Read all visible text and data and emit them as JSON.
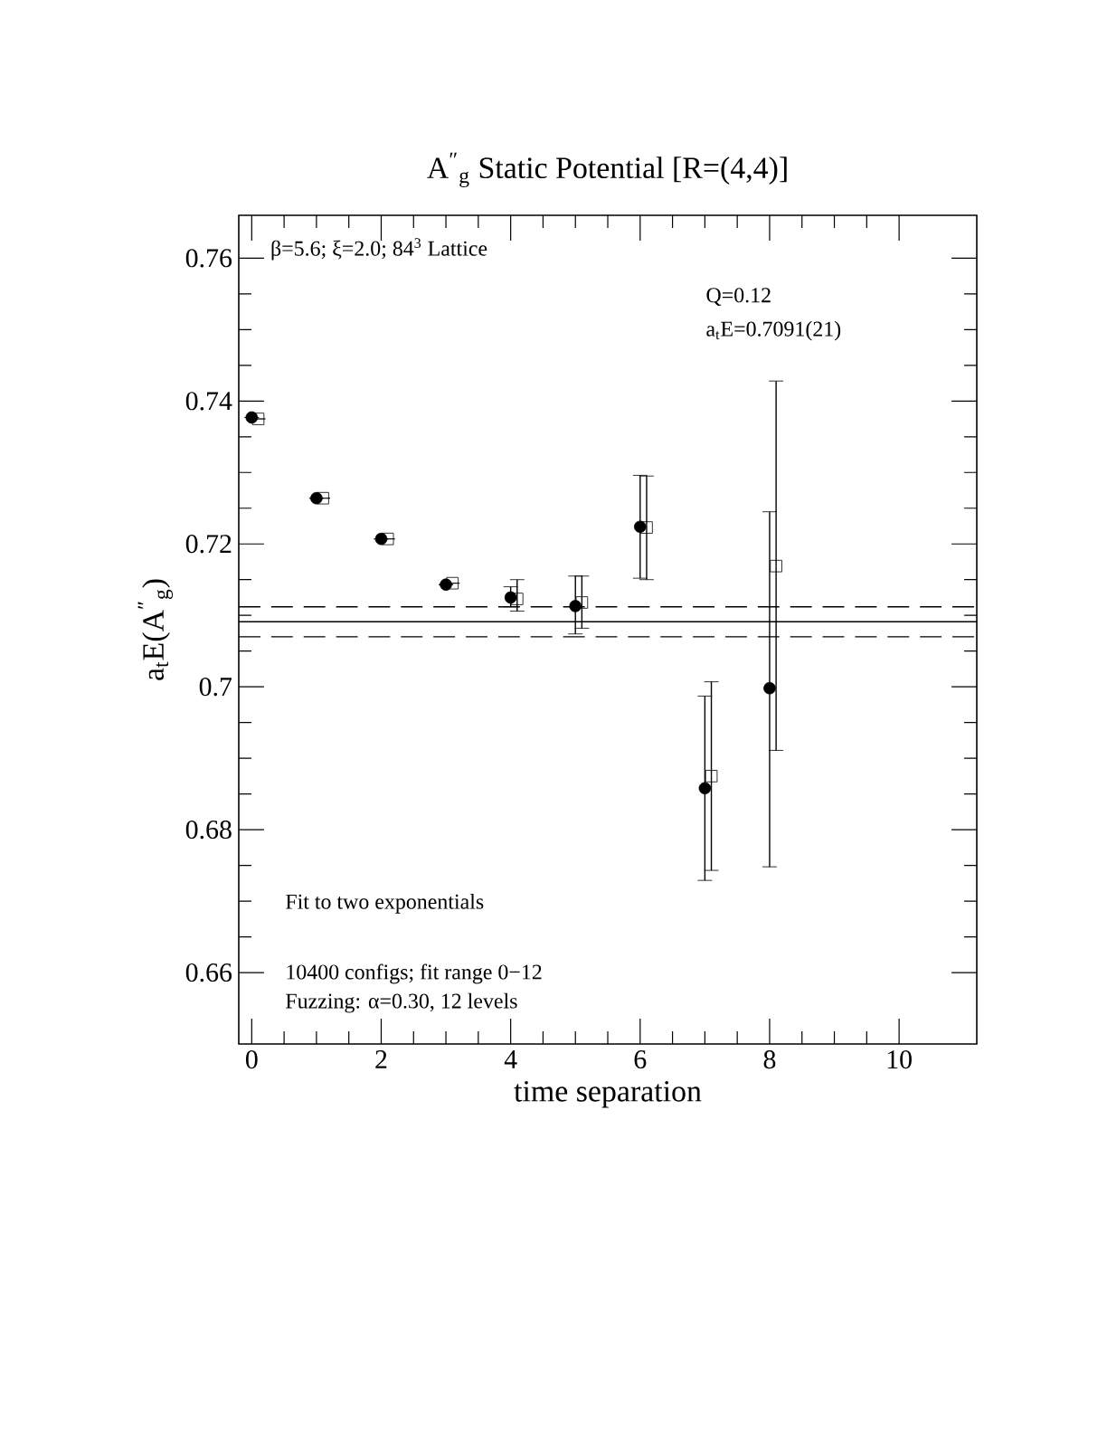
{
  "chart_data": {
    "type": "scatter",
    "title": "A$^{″}$$_{g}$  Static Potential [R=(4,4)]",
    "xlabel": "time separation",
    "ylabel": "a$_{t}$E(A$^{″}$$_{g}$)",
    "xlim": [
      -0.2,
      11.2
    ],
    "ylim": [
      0.65,
      0.766
    ],
    "xticks": [
      0,
      2,
      4,
      6,
      8,
      10
    ],
    "yticks": [
      0.66,
      0.68,
      0.7,
      0.72,
      0.74,
      0.76
    ],
    "series": [
      {
        "color": "#000000",
        "marker": "circle",
        "x": [
          0,
          1,
          2,
          3,
          4,
          5,
          6,
          7,
          8
        ],
        "values": [
          0.7377,
          0.7264,
          0.7207,
          0.7143,
          0.7125,
          0.7113,
          0.7224,
          0.6858,
          0.6998
        ],
        "errors": [
          null,
          null,
          null,
          null,
          [
            0.7112,
            0.714
          ],
          [
            0.7074,
            0.7155
          ],
          [
            0.7152,
            0.7296
          ],
          [
            0.6729,
            0.6987
          ],
          [
            0.6748,
            0.7245
          ]
        ]
      },
      {
        "color": "#000000",
        "marker": "square",
        "x": [
          0.1,
          1.1,
          2.1,
          3.1,
          4.1,
          5.1,
          6.1,
          7.1,
          8.1
        ],
        "values": [
          0.7375,
          0.7264,
          0.7207,
          0.7145,
          0.7123,
          0.7118,
          0.7223,
          0.6875,
          0.7169
        ],
        "errors": [
          null,
          null,
          null,
          null,
          [
            0.7106,
            0.715
          ],
          [
            0.7082,
            0.7155
          ],
          [
            0.715,
            0.7295
          ],
          [
            0.6743,
            0.7007
          ],
          [
            0.6911,
            0.7428
          ]
        ]
      }
    ],
    "ref_lines": [
      {
        "axis": "y",
        "value": 0.7091,
        "line_style": "solid"
      },
      {
        "axis": "y",
        "value": 0.7112,
        "line_style": "dashed"
      },
      {
        "axis": "y",
        "value": 0.707,
        "line_style": "dashed"
      }
    ],
    "annotations": [
      "β=5.6; ξ=2.0; 84$^{3}$ Lattice",
      "Q=0.12",
      "a$_{t}$E=0.7091(21)",
      "Fit to two exponentials",
      "10400 configs; fit range 0−12",
      "Fuzzing: α=0.30, 12 levels"
    ]
  }
}
